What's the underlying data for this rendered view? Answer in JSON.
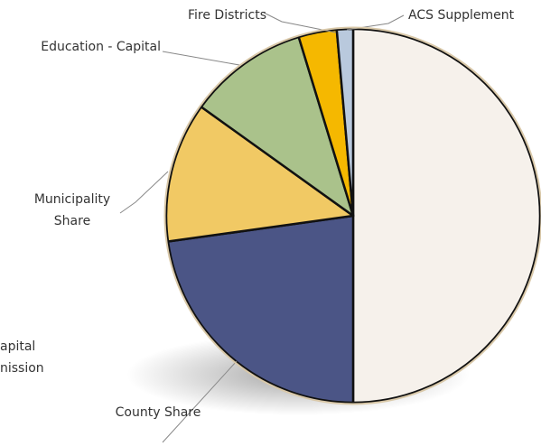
{
  "chart_data": {
    "type": "pie",
    "categories": [
      null,
      "County Share",
      "Municipality Share",
      "Education - Capital",
      "Fire Districts",
      "ACS Supplement"
    ],
    "values": [
      50,
      22.8,
      12.1,
      10.4,
      3.3,
      1.4
    ],
    "colors": [
      "#f6f1eb",
      "#4b5586",
      "#f1c964",
      "#aac28b",
      "#f5b800",
      "#b9c9dd"
    ],
    "annotations": [
      "apital",
      "nission"
    ]
  }
}
